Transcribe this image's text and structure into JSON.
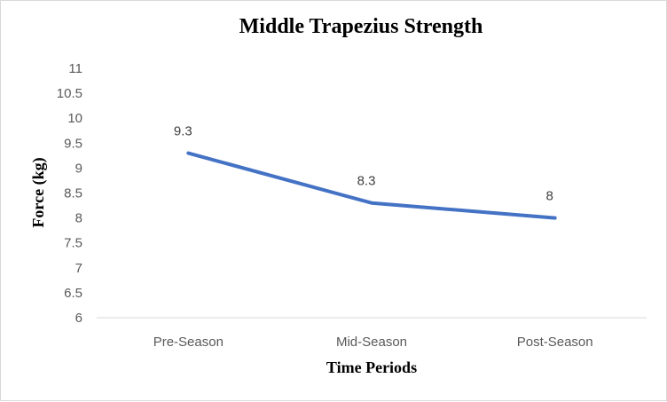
{
  "chart_data": {
    "type": "line",
    "title": "Middle Trapezius  Strength",
    "xlabel": "Time Periods",
    "ylabel": "Force (kg)",
    "categories": [
      "Pre-Season",
      "Mid-Season",
      "Post-Season"
    ],
    "series": [
      {
        "values": [
          9.3,
          8.3,
          8
        ],
        "color": "#4472c4"
      }
    ],
    "data_labels": [
      "9.3",
      "8.3",
      "8"
    ],
    "ylim": [
      6,
      11
    ],
    "yticks": [
      6,
      6.5,
      7,
      7.5,
      8,
      8.5,
      9,
      9.5,
      10,
      10.5,
      11
    ],
    "ytick_labels": [
      "6",
      "6.5",
      "7",
      "7.5",
      "8",
      "8.5",
      "9",
      "9.5",
      "10",
      "10.5",
      "11"
    ],
    "grid": false,
    "legend": "none",
    "axis_line_color": "#d9d9d9"
  }
}
